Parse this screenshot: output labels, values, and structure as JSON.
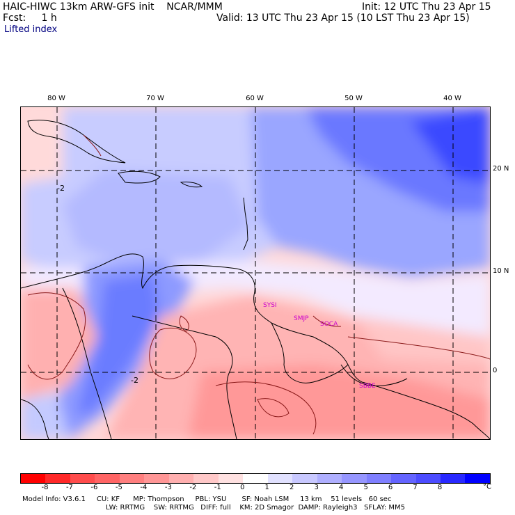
{
  "header": {
    "title": "HAIC-HIWC 13km ARW-GFS init    NCAR/MMM",
    "init": "Init: 12 UTC Thu 23 Apr 15",
    "fcst": "Fcst:     1 h",
    "valid": "Valid: 13 UTC Thu 23 Apr 15 (10 LST Thu 23 Apr 15)",
    "field": "Lifted index"
  },
  "map": {
    "lon_labels": [
      "80 W",
      "70 W",
      "60 W",
      "50 W",
      "40 W"
    ],
    "lat_labels": [
      "20 N",
      "10 N",
      "0"
    ],
    "stations": [
      "SYSI",
      "SMJP",
      "SOCA",
      "SBBE"
    ],
    "contour_labels": [
      "-2",
      "-2"
    ],
    "colors": {
      "gridline": "#000000",
      "coast": "#000000",
      "station": "#cc00cc",
      "contour": "#8b1a1a"
    }
  },
  "colorbar": {
    "colors": [
      "#ff0000",
      "#ff2828",
      "#ff4c4c",
      "#ff6464",
      "#ff7f7f",
      "#ff9696",
      "#ffafaf",
      "#ffc8c8",
      "#ffe1e1",
      "#ffffff",
      "#e1e1ff",
      "#c8c8ff",
      "#afafff",
      "#9696ff",
      "#7f7fff",
      "#6464ff",
      "#4c4cff",
      "#2828ff",
      "#0000ff"
    ],
    "labels": [
      "-8",
      "-7",
      "-6",
      "-5",
      "-4",
      "-3",
      "-2",
      "-1",
      "0",
      "1",
      "2",
      "3",
      "4",
      "5",
      "6",
      "7",
      "8"
    ],
    "unit": "°C"
  },
  "model_info": {
    "line1": "Model Info: V3.6.1     CU: KF      MP: Thompson     PBL: YSU       SF: Noah LSM     13 km    51 levels   60 sec",
    "line2": "LW: RRTMG    SW: RRTMG   DIFF: full    KM: 2D Smagor  DAMP: Rayleigh3   SFLAY: MM5"
  }
}
